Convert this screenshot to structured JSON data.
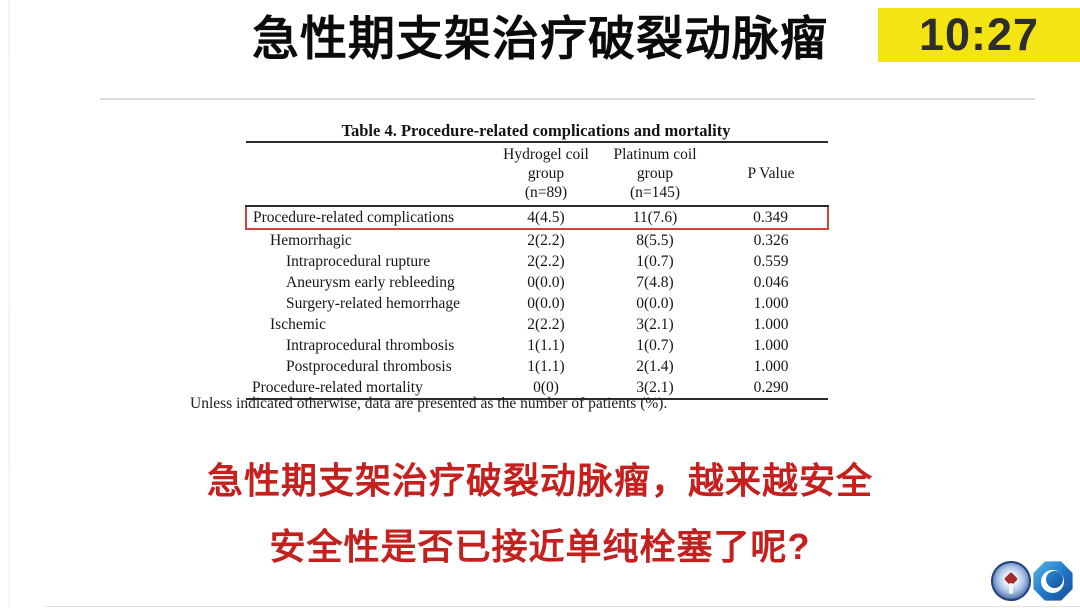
{
  "slide": {
    "title": "急性期支架治疗破裂动脉瘤",
    "timer": "10:27"
  },
  "table": {
    "title": "Table 4. Procedure-related complications and mortality",
    "header": {
      "hydrogel": {
        "line1": "Hydrogel coil",
        "line2": "group",
        "line3": "(n=89)"
      },
      "platinum": {
        "line1": "Platinum coil",
        "line2": "group",
        "line3": "(n=145)"
      },
      "pvalue": "P Value"
    },
    "rows": [
      {
        "label": "Procedure-related complications",
        "indent": 0,
        "hydrogel": "4(4.5)",
        "platinum": "11(7.6)",
        "p": "0.349",
        "highlight": true
      },
      {
        "label": "Hemorrhagic",
        "indent": 1,
        "hydrogel": "2(2.2)",
        "platinum": "8(5.5)",
        "p": "0.326",
        "highlight": false
      },
      {
        "label": "Intraprocedural rupture",
        "indent": 2,
        "hydrogel": "2(2.2)",
        "platinum": "1(0.7)",
        "p": "0.559",
        "highlight": false
      },
      {
        "label": "Aneurysm early rebleeding",
        "indent": 2,
        "hydrogel": "0(0.0)",
        "platinum": "7(4.8)",
        "p": "0.046",
        "highlight": false
      },
      {
        "label": "Surgery-related hemorrhage",
        "indent": 2,
        "hydrogel": "0(0.0)",
        "platinum": "0(0.0)",
        "p": "1.000",
        "highlight": false
      },
      {
        "label": "Ischemic",
        "indent": 1,
        "hydrogel": "2(2.2)",
        "platinum": "3(2.1)",
        "p": "1.000",
        "highlight": false
      },
      {
        "label": "Intraprocedural thrombosis",
        "indent": 2,
        "hydrogel": "1(1.1)",
        "platinum": "1(0.7)",
        "p": "1.000",
        "highlight": false
      },
      {
        "label": "Postprocedural thrombosis",
        "indent": 2,
        "hydrogel": "1(1.1)",
        "platinum": "2(1.4)",
        "p": "1.000",
        "highlight": false
      },
      {
        "label": "Procedure-related mortality",
        "indent": 0,
        "hydrogel": "0(0)",
        "platinum": "3(2.1)",
        "p": "0.290",
        "highlight": false
      }
    ],
    "footnote": "Unless indicated otherwise, data are presented as the number of patients (%)."
  },
  "conclusion": {
    "line1": "急性期支架治疗破裂动脉瘤，越来越安全",
    "line2": "安全性是否已接近单纯栓塞了呢?"
  },
  "colors": {
    "timer_background": "#f4e414",
    "conclusion_red": "#c4201e",
    "highlight_box_red": "#d2433a",
    "table_rule": "#2b2b2b"
  },
  "logos": {
    "seal": "hospital-seal",
    "octagon": "octagon-swirl"
  }
}
